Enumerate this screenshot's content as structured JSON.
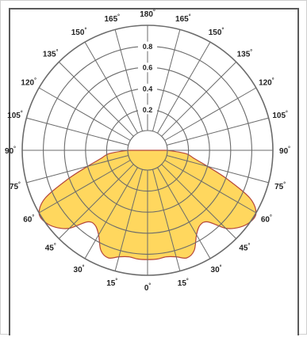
{
  "chart_data": {
    "type": "polar",
    "title": "",
    "radial_ticks": [
      "0.2",
      "0.4",
      "0.6",
      "0.8"
    ],
    "angle_labels_left": [
      "180",
      "165",
      "150",
      "135",
      "120",
      "105",
      "90",
      "75",
      "60",
      "45",
      "30",
      "15",
      "0"
    ],
    "angle_labels_right": [
      "165",
      "150",
      "135",
      "120",
      "105",
      "90",
      "75",
      "60",
      "45",
      "30",
      "15"
    ],
    "degree_symbol": "°",
    "series": [
      {
        "fill": "#FFD75E",
        "outline": "#C0392B",
        "angles_deg": [
          0,
          5,
          10,
          15,
          20,
          25,
          30,
          35,
          40,
          45,
          50,
          55,
          60,
          65,
          70,
          75,
          80,
          85,
          90
        ],
        "values": [
          0.85,
          0.85,
          0.84,
          0.86,
          0.9,
          0.86,
          0.74,
          0.68,
          0.7,
          0.86,
          0.95,
          1.0,
          1.0,
          0.88,
          0.62,
          0.4,
          0.26,
          0.18,
          0.0
        ]
      }
    ],
    "rmax": 1.0,
    "colors": {
      "grid": "#6b6b6b",
      "fill": "#FFD75E",
      "outline": "#B5473A"
    }
  }
}
